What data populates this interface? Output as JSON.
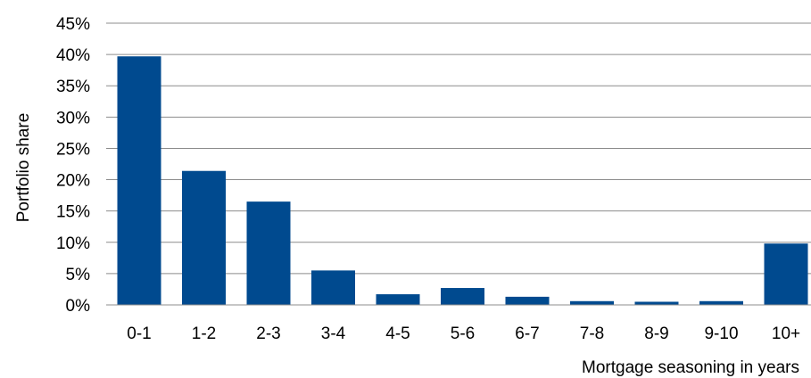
{
  "chart_data": {
    "type": "bar",
    "categories": [
      "0-1",
      "1-2",
      "2-3",
      "3-4",
      "4-5",
      "5-6",
      "6-7",
      "7-8",
      "8-9",
      "9-10",
      "10+"
    ],
    "values": [
      39.7,
      21.4,
      16.5,
      5.5,
      1.7,
      2.7,
      1.3,
      0.6,
      0.5,
      0.6,
      9.8
    ],
    "ylim": [
      0,
      45
    ],
    "yticks": [
      0,
      5,
      10,
      15,
      20,
      25,
      30,
      35,
      40,
      45
    ],
    "ytick_labels": [
      "0%",
      "5%",
      "10%",
      "15%",
      "20%",
      "25%",
      "30%",
      "35%",
      "40%",
      "45%"
    ],
    "xlabel": "Mortgage seasoning in years",
    "ylabel": "Portfolio share",
    "grid": true,
    "legend": "none",
    "bar_color": "#004a8f"
  }
}
